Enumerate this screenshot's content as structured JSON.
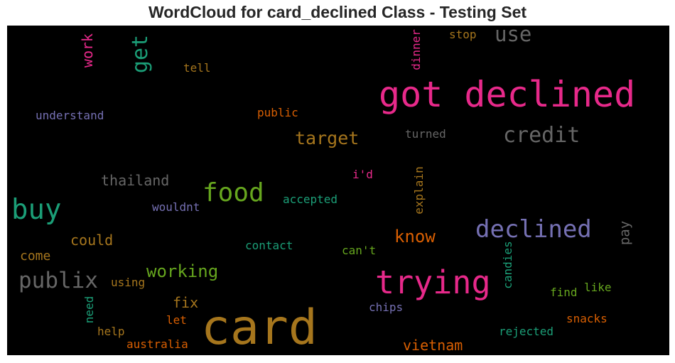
{
  "title": "WordCloud for card_declined Class - Testing Set",
  "background": "#000000",
  "words": {
    "got_declined": {
      "text": "got declined",
      "color": "#e7298a"
    },
    "card": {
      "text": "card",
      "color": "#a6761d"
    },
    "trying": {
      "text": "trying",
      "color": "#e7298a"
    },
    "buy": {
      "text": "buy",
      "color": "#1b9e77"
    },
    "declined": {
      "text": "declined",
      "color": "#7570b3"
    },
    "food": {
      "text": "food",
      "color": "#66a61e"
    },
    "credit": {
      "text": "credit",
      "color": "#666666"
    },
    "publix": {
      "text": "publix",
      "color": "#666666"
    },
    "use": {
      "text": "use",
      "color": "#666666"
    },
    "get": {
      "text": "get",
      "color": "#1b9e77"
    },
    "work": {
      "text": "work",
      "color": "#e7298a"
    },
    "target": {
      "text": "target",
      "color": "#a6761d"
    },
    "working": {
      "text": "working",
      "color": "#66a61e"
    },
    "know": {
      "text": "know",
      "color": "#d95f02"
    },
    "thailand": {
      "text": "thailand",
      "color": "#666666"
    },
    "could": {
      "text": "could",
      "color": "#a6761d"
    },
    "vietnam": {
      "text": "vietnam",
      "color": "#d95f02"
    },
    "fix": {
      "text": "fix",
      "color": "#a6761d"
    },
    "come": {
      "text": "come",
      "color": "#a6761d"
    },
    "pay": {
      "text": "pay",
      "color": "#666666"
    },
    "dinner": {
      "text": "dinner",
      "color": "#e7298a"
    },
    "stop": {
      "text": "stop",
      "color": "#a6761d"
    },
    "tell": {
      "text": "tell",
      "color": "#a6761d"
    },
    "understand": {
      "text": "understand",
      "color": "#7570b3"
    },
    "public": {
      "text": "public",
      "color": "#d95f02"
    },
    "turned": {
      "text": "turned",
      "color": "#666666"
    },
    "id": {
      "text": "i'd",
      "color": "#e7298a"
    },
    "explain": {
      "text": "explain",
      "color": "#a6761d"
    },
    "accepted": {
      "text": "accepted",
      "color": "#1b9e77"
    },
    "wouldnt": {
      "text": "wouldnt",
      "color": "#7570b3"
    },
    "contact": {
      "text": "contact",
      "color": "#1b9e77"
    },
    "cant": {
      "text": "can't",
      "color": "#66a61e"
    },
    "using": {
      "text": "using",
      "color": "#a6761d"
    },
    "candies": {
      "text": "candies",
      "color": "#1b9e77"
    },
    "find": {
      "text": "find",
      "color": "#66a61e"
    },
    "like": {
      "text": "like",
      "color": "#66a61e"
    },
    "need": {
      "text": "need",
      "color": "#1b9e77"
    },
    "chips": {
      "text": "chips",
      "color": "#7570b3"
    },
    "snacks": {
      "text": "snacks",
      "color": "#d95f02"
    },
    "let": {
      "text": "let",
      "color": "#d95f02"
    },
    "help": {
      "text": "help",
      "color": "#a6761d"
    },
    "rejected": {
      "text": "rejected",
      "color": "#1b9e77"
    },
    "australia": {
      "text": "australia",
      "color": "#d95f02"
    }
  }
}
